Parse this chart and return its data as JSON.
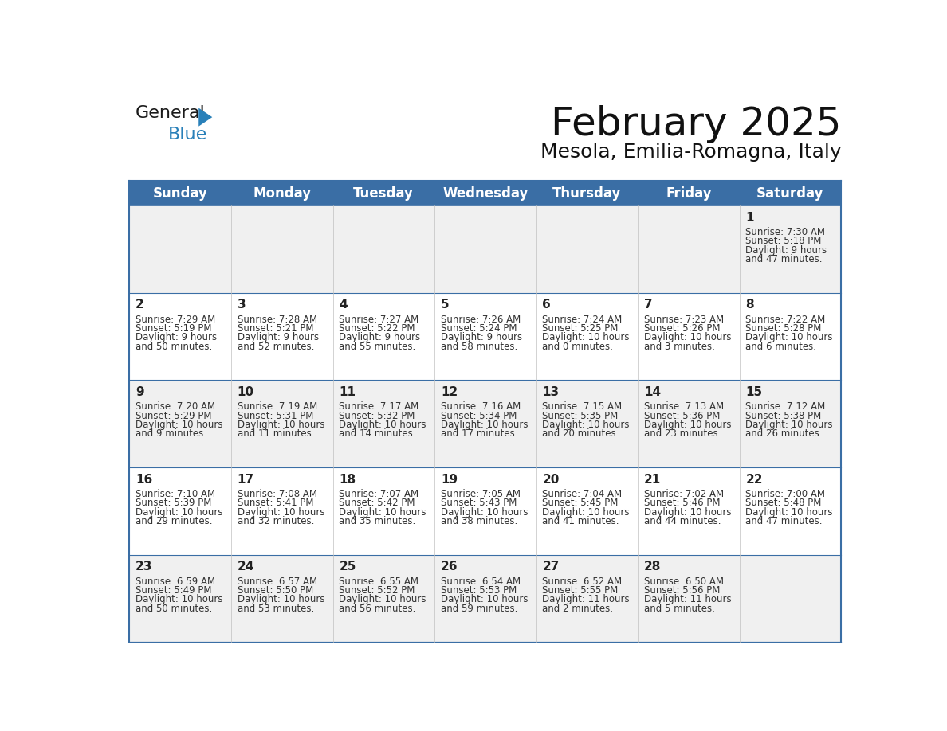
{
  "title": "February 2025",
  "subtitle": "Mesola, Emilia-Romagna, Italy",
  "days_of_week": [
    "Sunday",
    "Monday",
    "Tuesday",
    "Wednesday",
    "Thursday",
    "Friday",
    "Saturday"
  ],
  "header_bg": "#3a6ea5",
  "header_text": "#ffffff",
  "cell_bg_odd": "#f0f0f0",
  "cell_bg_even": "#ffffff",
  "border_color": "#3a6ea5",
  "text_color": "#333333",
  "day_num_color": "#222222",
  "calendar": [
    [
      null,
      null,
      null,
      null,
      null,
      null,
      {
        "day": 1,
        "sunrise": "7:30 AM",
        "sunset": "5:18 PM",
        "daylight_h": "9 hours",
        "daylight_m": "47 minutes"
      }
    ],
    [
      {
        "day": 2,
        "sunrise": "7:29 AM",
        "sunset": "5:19 PM",
        "daylight_h": "9 hours",
        "daylight_m": "50 minutes"
      },
      {
        "day": 3,
        "sunrise": "7:28 AM",
        "sunset": "5:21 PM",
        "daylight_h": "9 hours",
        "daylight_m": "52 minutes"
      },
      {
        "day": 4,
        "sunrise": "7:27 AM",
        "sunset": "5:22 PM",
        "daylight_h": "9 hours",
        "daylight_m": "55 minutes"
      },
      {
        "day": 5,
        "sunrise": "7:26 AM",
        "sunset": "5:24 PM",
        "daylight_h": "9 hours",
        "daylight_m": "58 minutes"
      },
      {
        "day": 6,
        "sunrise": "7:24 AM",
        "sunset": "5:25 PM",
        "daylight_h": "10 hours",
        "daylight_m": "0 minutes"
      },
      {
        "day": 7,
        "sunrise": "7:23 AM",
        "sunset": "5:26 PM",
        "daylight_h": "10 hours",
        "daylight_m": "3 minutes"
      },
      {
        "day": 8,
        "sunrise": "7:22 AM",
        "sunset": "5:28 PM",
        "daylight_h": "10 hours",
        "daylight_m": "6 minutes"
      }
    ],
    [
      {
        "day": 9,
        "sunrise": "7:20 AM",
        "sunset": "5:29 PM",
        "daylight_h": "10 hours",
        "daylight_m": "9 minutes"
      },
      {
        "day": 10,
        "sunrise": "7:19 AM",
        "sunset": "5:31 PM",
        "daylight_h": "10 hours",
        "daylight_m": "11 minutes"
      },
      {
        "day": 11,
        "sunrise": "7:17 AM",
        "sunset": "5:32 PM",
        "daylight_h": "10 hours",
        "daylight_m": "14 minutes"
      },
      {
        "day": 12,
        "sunrise": "7:16 AM",
        "sunset": "5:34 PM",
        "daylight_h": "10 hours",
        "daylight_m": "17 minutes"
      },
      {
        "day": 13,
        "sunrise": "7:15 AM",
        "sunset": "5:35 PM",
        "daylight_h": "10 hours",
        "daylight_m": "20 minutes"
      },
      {
        "day": 14,
        "sunrise": "7:13 AM",
        "sunset": "5:36 PM",
        "daylight_h": "10 hours",
        "daylight_m": "23 minutes"
      },
      {
        "day": 15,
        "sunrise": "7:12 AM",
        "sunset": "5:38 PM",
        "daylight_h": "10 hours",
        "daylight_m": "26 minutes"
      }
    ],
    [
      {
        "day": 16,
        "sunrise": "7:10 AM",
        "sunset": "5:39 PM",
        "daylight_h": "10 hours",
        "daylight_m": "29 minutes"
      },
      {
        "day": 17,
        "sunrise": "7:08 AM",
        "sunset": "5:41 PM",
        "daylight_h": "10 hours",
        "daylight_m": "32 minutes"
      },
      {
        "day": 18,
        "sunrise": "7:07 AM",
        "sunset": "5:42 PM",
        "daylight_h": "10 hours",
        "daylight_m": "35 minutes"
      },
      {
        "day": 19,
        "sunrise": "7:05 AM",
        "sunset": "5:43 PM",
        "daylight_h": "10 hours",
        "daylight_m": "38 minutes"
      },
      {
        "day": 20,
        "sunrise": "7:04 AM",
        "sunset": "5:45 PM",
        "daylight_h": "10 hours",
        "daylight_m": "41 minutes"
      },
      {
        "day": 21,
        "sunrise": "7:02 AM",
        "sunset": "5:46 PM",
        "daylight_h": "10 hours",
        "daylight_m": "44 minutes"
      },
      {
        "day": 22,
        "sunrise": "7:00 AM",
        "sunset": "5:48 PM",
        "daylight_h": "10 hours",
        "daylight_m": "47 minutes"
      }
    ],
    [
      {
        "day": 23,
        "sunrise": "6:59 AM",
        "sunset": "5:49 PM",
        "daylight_h": "10 hours",
        "daylight_m": "50 minutes"
      },
      {
        "day": 24,
        "sunrise": "6:57 AM",
        "sunset": "5:50 PM",
        "daylight_h": "10 hours",
        "daylight_m": "53 minutes"
      },
      {
        "day": 25,
        "sunrise": "6:55 AM",
        "sunset": "5:52 PM",
        "daylight_h": "10 hours",
        "daylight_m": "56 minutes"
      },
      {
        "day": 26,
        "sunrise": "6:54 AM",
        "sunset": "5:53 PM",
        "daylight_h": "10 hours",
        "daylight_m": "59 minutes"
      },
      {
        "day": 27,
        "sunrise": "6:52 AM",
        "sunset": "5:55 PM",
        "daylight_h": "11 hours",
        "daylight_m": "2 minutes"
      },
      {
        "day": 28,
        "sunrise": "6:50 AM",
        "sunset": "5:56 PM",
        "daylight_h": "11 hours",
        "daylight_m": "5 minutes"
      },
      null
    ]
  ],
  "logo_general_color": "#1a1a1a",
  "logo_blue_color": "#2980b9",
  "logo_triangle_color": "#2980b9",
  "title_fontsize": 36,
  "subtitle_fontsize": 18,
  "header_fontsize": 12,
  "day_num_fontsize": 11,
  "cell_fontsize": 8.5
}
